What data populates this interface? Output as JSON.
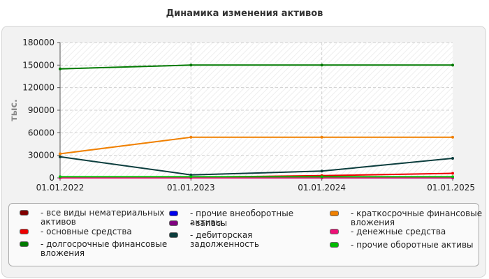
{
  "title": "Динамика изменения активов",
  "chart_data": {
    "type": "line",
    "x": [
      "01.01.2022",
      "01.01.2023",
      "01.01.2024",
      "01.01.2025"
    ],
    "ylabel": "тыс.",
    "ylim": [
      0,
      180000
    ],
    "yticks": [
      "0",
      "30000",
      "60000",
      "90000",
      "120000",
      "150000",
      "180000"
    ],
    "grid": true,
    "legend_position": "bottom",
    "series": [
      {
        "name": "- все виды нематериальных активов",
        "color": "#800000",
        "values": [
          0,
          0,
          0,
          0
        ]
      },
      {
        "name": "- основные средства",
        "color": "#ee0000",
        "values": [
          500,
          800,
          3000,
          6000
        ]
      },
      {
        "name": "- долгосрочные финансовые вложения",
        "color": "#007a00",
        "values": [
          145000,
          150000,
          150000,
          150000
        ]
      },
      {
        "name": "- прочие внеоборотные активы",
        "color": "#0000ee",
        "values": [
          0,
          0,
          0,
          0
        ]
      },
      {
        "name": "- запасы",
        "color": "#800080",
        "values": [
          0,
          0,
          0,
          0
        ]
      },
      {
        "name": "- дебиторская задолженность",
        "color": "#0b3d3d",
        "values": [
          28000,
          4000,
          9000,
          26000
        ]
      },
      {
        "name": "- краткосрочные финансовые вложения",
        "color": "#f08000",
        "values": [
          32000,
          54000,
          54000,
          54000
        ]
      },
      {
        "name": "- денежные средства",
        "color": "#ee1077",
        "values": [
          0,
          0,
          200,
          300
        ]
      },
      {
        "name": "- прочие оборотные активы",
        "color": "#00bb00",
        "values": [
          1500,
          1500,
          1500,
          1500
        ]
      }
    ]
  }
}
